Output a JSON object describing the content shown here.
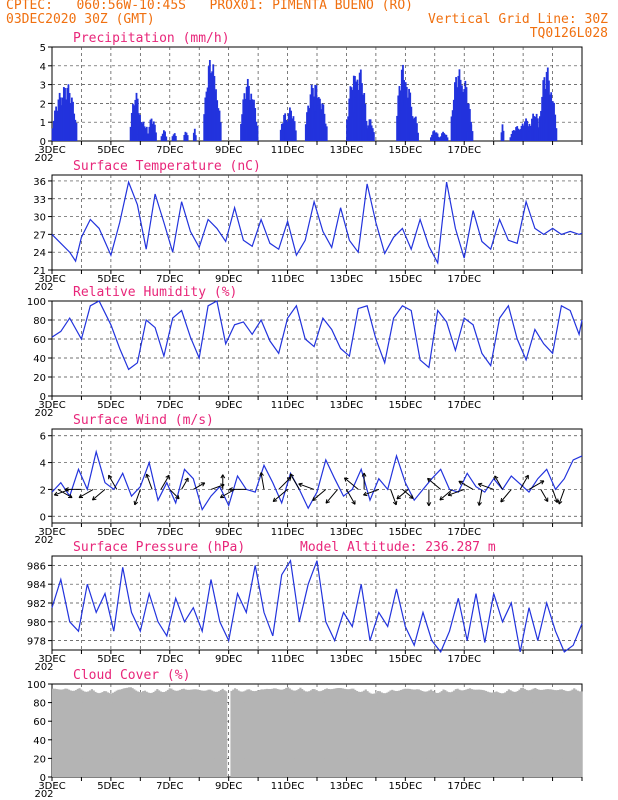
{
  "header": {
    "line1_left": "CPTEC:   060:56W-10:45S   PROX01: PIMENTA BUENO (RO)",
    "line2_left": "03DEC2020 30Z (GMT)",
    "line2_right": "Vertical Grid Line: 30Z",
    "line3_right": "TQ0126L028"
  },
  "x_axis": {
    "ticks": [
      "3DEC",
      "5DEC",
      "7DEC",
      "9DEC",
      "11DEC",
      "13DEC",
      "15DEC",
      "17DEC"
    ],
    "subtick": "202"
  },
  "colors": {
    "title": "#e8267a",
    "header": "#f07010",
    "line": "#2233dd",
    "cloud": "#b4b4b4"
  },
  "chart_data": [
    {
      "type": "bar",
      "title": "Precipitation (mm/h)",
      "ylim": [
        0,
        5
      ],
      "yticks": [
        "0",
        "1",
        "2",
        "3",
        "4",
        "5"
      ],
      "x_unit": "days since 3DEC 30Z",
      "events": [
        [
          0.3,
          0.6,
          2.6
        ],
        [
          0.5,
          0.7,
          3.1
        ],
        [
          2.85,
          0.4,
          2.6
        ],
        [
          3.05,
          0.3,
          1.2
        ],
        [
          3.4,
          0.3,
          1.3
        ],
        [
          3.2,
          0.15,
          0.8
        ],
        [
          3.8,
          0.2,
          0.6
        ],
        [
          4.15,
          0.15,
          0.5
        ],
        [
          4.55,
          0.15,
          0.6
        ],
        [
          4.85,
          0.1,
          0.7
        ],
        [
          5.4,
          0.5,
          4.5
        ],
        [
          5.55,
          0.4,
          2.8
        ],
        [
          6.65,
          0.5,
          3.3
        ],
        [
          6.8,
          0.4,
          2.4
        ],
        [
          7.9,
          0.3,
          1.5
        ],
        [
          8.1,
          0.4,
          1.8
        ],
        [
          8.9,
          0.6,
          3.2
        ],
        [
          9.1,
          0.5,
          2.4
        ],
        [
          10.25,
          0.5,
          3.6
        ],
        [
          10.45,
          0.5,
          3.9
        ],
        [
          10.8,
          0.3,
          1.2
        ],
        [
          11.9,
          0.4,
          4.1
        ],
        [
          12.05,
          0.5,
          3.2
        ],
        [
          12.3,
          0.3,
          1.5
        ],
        [
          13.0,
          0.3,
          0.6
        ],
        [
          13.3,
          0.3,
          0.5
        ],
        [
          13.8,
          0.5,
          3.9
        ],
        [
          14.0,
          0.5,
          3.3
        ],
        [
          14.2,
          0.2,
          1.1
        ],
        [
          15.3,
          0.1,
          0.9
        ],
        [
          15.8,
          0.5,
          0.8
        ],
        [
          16.1,
          0.5,
          1.2
        ],
        [
          16.4,
          0.4,
          1.6
        ],
        [
          16.8,
          0.5,
          4.0
        ],
        [
          16.95,
          0.4,
          2.6
        ]
      ]
    },
    {
      "type": "line",
      "title": "Surface Temperature (nC)",
      "ylim": [
        21,
        37
      ],
      "yticks": [
        "21",
        "24",
        "27",
        "30",
        "33",
        "36"
      ],
      "x_unit": "days since 3DEC 30Z",
      "x": [
        0,
        0.3,
        0.6,
        0.8,
        1,
        1.3,
        1.6,
        2.0,
        2.3,
        2.6,
        2.9,
        3.2,
        3.5,
        3.8,
        4.1,
        4.4,
        4.7,
        5.0,
        5.3,
        5.6,
        5.9,
        6.2,
        6.5,
        6.8,
        7.1,
        7.4,
        7.7,
        8.0,
        8.3,
        8.6,
        8.9,
        9.2,
        9.5,
        9.8,
        10.1,
        10.4,
        10.7,
        11.0,
        11.3,
        11.6,
        11.9,
        12.2,
        12.5,
        12.8,
        13.1,
        13.4,
        13.7,
        14.0,
        14.3,
        14.6,
        14.9,
        15.2,
        15.5,
        15.8,
        16.1,
        16.4,
        16.7,
        17.0,
        17.3,
        17.6,
        17.9,
        18.0
      ],
      "y": [
        27,
        25.5,
        24,
        22.5,
        26.5,
        29.5,
        28,
        23.5,
        29,
        35.8,
        32,
        24.5,
        33.8,
        29,
        24,
        32.5,
        27.5,
        24.8,
        29.5,
        28,
        25.8,
        31.5,
        26,
        25,
        29.5,
        25.5,
        24.5,
        29.2,
        23.5,
        26,
        32.5,
        27.5,
        24.8,
        31.5,
        26,
        24,
        35.5,
        29,
        23.8,
        26.5,
        28,
        24.5,
        29.5,
        25,
        22.2,
        35.8,
        28,
        23,
        31,
        25.8,
        24.5,
        29.5,
        26,
        25.5,
        32.5,
        28,
        27,
        28,
        27,
        27.5,
        27,
        27.2
      ]
    },
    {
      "type": "line",
      "title": "Relative Humidity (%)",
      "ylim": [
        0,
        100
      ],
      "yticks": [
        "0",
        "20",
        "40",
        "60",
        "80",
        "100"
      ],
      "x_unit": "days since 3DEC 30Z",
      "x": [
        0,
        0.3,
        0.6,
        1.0,
        1.3,
        1.6,
        2.0,
        2.3,
        2.6,
        2.9,
        3.2,
        3.5,
        3.8,
        4.1,
        4.4,
        4.7,
        5.0,
        5.3,
        5.6,
        5.9,
        6.2,
        6.5,
        6.8,
        7.1,
        7.4,
        7.7,
        8.0,
        8.3,
        8.6,
        8.9,
        9.2,
        9.5,
        9.8,
        10.1,
        10.4,
        10.7,
        11.0,
        11.3,
        11.6,
        11.9,
        12.2,
        12.5,
        12.8,
        13.1,
        13.4,
        13.7,
        14.0,
        14.3,
        14.6,
        14.9,
        15.2,
        15.5,
        15.8,
        16.1,
        16.4,
        16.7,
        17.0,
        17.3,
        17.6,
        17.9,
        18.0
      ],
      "y": [
        62,
        68,
        82,
        60,
        95,
        100,
        75,
        50,
        28,
        35,
        80,
        72,
        42,
        82,
        90,
        62,
        40,
        95,
        100,
        55,
        75,
        78,
        65,
        80,
        58,
        45,
        82,
        95,
        60,
        52,
        82,
        70,
        50,
        42,
        92,
        95,
        60,
        35,
        82,
        95,
        90,
        38,
        30,
        90,
        78,
        48,
        82,
        75,
        45,
        32,
        82,
        95,
        60,
        38,
        70,
        55,
        45,
        95,
        90,
        65,
        80
      ]
    },
    {
      "type": "line",
      "title": "Surface Wind (m/s)",
      "ylim": [
        -0.5,
        6.5
      ],
      "yticks": [
        "0",
        "2",
        "4",
        "6"
      ],
      "x_unit": "days since 3DEC 30Z",
      "x": [
        0,
        0.3,
        0.6,
        0.9,
        1.2,
        1.5,
        1.8,
        2.1,
        2.4,
        2.7,
        3.0,
        3.3,
        3.6,
        3.9,
        4.2,
        4.5,
        4.8,
        5.1,
        5.4,
        5.7,
        6.0,
        6.3,
        6.6,
        6.9,
        7.2,
        7.5,
        7.8,
        8.1,
        8.4,
        8.7,
        9.0,
        9.3,
        9.6,
        9.9,
        10.2,
        10.5,
        10.8,
        11.1,
        11.4,
        11.7,
        12.0,
        12.3,
        12.6,
        12.9,
        13.2,
        13.5,
        13.8,
        14.1,
        14.4,
        14.7,
        15.0,
        15.3,
        15.6,
        15.9,
        16.2,
        16.5,
        16.8,
        17.1,
        17.4,
        17.7,
        18.0
      ],
      "y": [
        1.8,
        2.5,
        1.5,
        3.5,
        2.0,
        4.8,
        2.5,
        2.0,
        3.2,
        1.5,
        2.2,
        4.0,
        1.2,
        2.5,
        1.0,
        3.5,
        2.8,
        0.5,
        1.5,
        2.2,
        0.8,
        3.0,
        2.0,
        1.8,
        3.8,
        2.5,
        1.0,
        3.2,
        2.0,
        0.6,
        1.8,
        4.2,
        2.8,
        1.5,
        2.0,
        3.5,
        1.2,
        2.8,
        2.0,
        4.5,
        2.5,
        1.2,
        2.0,
        2.8,
        3.5,
        2.0,
        1.8,
        3.2,
        2.2,
        1.8,
        2.8,
        2.0,
        3.0,
        2.4,
        1.8,
        2.8,
        3.5,
        2.0,
        2.8,
        4.2,
        4.5
      ],
      "arrows": [
        [
          0.2,
          -30,
          0.8
        ],
        [
          0.6,
          200,
          0.8
        ],
        [
          1.0,
          180,
          0.8
        ],
        [
          1.4,
          -150,
          0.8
        ],
        [
          1.8,
          -140,
          0.8
        ],
        [
          2.2,
          120,
          0.8
        ],
        [
          3.0,
          -110,
          0.8
        ],
        [
          3.4,
          110,
          0.8
        ],
        [
          3.7,
          60,
          0.8
        ],
        [
          4.0,
          -45,
          0.4
        ],
        [
          4.4,
          60,
          0.4
        ],
        [
          4.8,
          30,
          0.4
        ],
        [
          5.4,
          20,
          0.5
        ],
        [
          5.8,
          90,
          0.6
        ],
        [
          6.2,
          -150,
          0.8
        ],
        [
          6.6,
          180,
          0.9
        ],
        [
          7.2,
          100,
          0.9
        ],
        [
          7.7,
          45,
          0.9
        ],
        [
          8.0,
          -140,
          1.1
        ],
        [
          8.4,
          120,
          1.0
        ],
        [
          8.9,
          160,
          0.8
        ],
        [
          9.3,
          -140,
          0.9
        ],
        [
          9.7,
          -130,
          1.0
        ],
        [
          10.0,
          -60,
          0.9
        ],
        [
          10.4,
          140,
          1.0
        ],
        [
          10.6,
          90,
          0.8
        ],
        [
          11.1,
          -160,
          0.8
        ],
        [
          11.5,
          -70,
          0.8
        ],
        [
          11.9,
          -40,
          0.5
        ],
        [
          12.1,
          -140,
          0.6
        ],
        [
          12.8,
          -90,
          0.8
        ],
        [
          13.2,
          140,
          0.9
        ],
        [
          13.6,
          -140,
          0.8
        ],
        [
          14.0,
          200,
          0.9
        ],
        [
          14.3,
          150,
          0.8
        ],
        [
          14.6,
          -100,
          0.8
        ],
        [
          15.0,
          160,
          0.8
        ],
        [
          15.3,
          120,
          0.7
        ],
        [
          15.6,
          -130,
          0.8
        ],
        [
          15.9,
          60,
          0.8
        ],
        [
          16.2,
          30,
          0.9
        ],
        [
          16.6,
          -60,
          0.5
        ],
        [
          17.0,
          -70,
          0.5
        ],
        [
          17.4,
          -110,
          0.7
        ]
      ]
    },
    {
      "type": "line",
      "title": "Surface Pressure (hPa)",
      "subtitle": "Model Altitude: 236.287 m",
      "ylim": [
        977,
        987
      ],
      "yticks": [
        "978",
        "980",
        "982",
        "984",
        "986"
      ],
      "x_unit": "days since 3DEC 30Z",
      "x": [
        0,
        0.3,
        0.6,
        0.9,
        1.2,
        1.5,
        1.8,
        2.1,
        2.4,
        2.7,
        3.0,
        3.3,
        3.6,
        3.9,
        4.2,
        4.5,
        4.8,
        5.1,
        5.4,
        5.7,
        6.0,
        6.3,
        6.6,
        6.9,
        7.2,
        7.5,
        7.8,
        8.1,
        8.4,
        8.7,
        9.0,
        9.3,
        9.6,
        9.9,
        10.2,
        10.5,
        10.8,
        11.1,
        11.4,
        11.7,
        12.0,
        12.3,
        12.6,
        12.9,
        13.2,
        13.5,
        13.8,
        14.1,
        14.4,
        14.7,
        15.0,
        15.3,
        15.6,
        15.9,
        16.2,
        16.5,
        16.8,
        17.1,
        17.4,
        17.7,
        18.0
      ],
      "y": [
        981.5,
        984.5,
        980,
        979,
        984,
        981,
        983,
        979,
        985.8,
        981,
        979,
        983,
        980,
        978.5,
        982.5,
        980,
        981.5,
        979,
        984.5,
        980,
        978,
        983,
        981,
        986,
        981,
        978.5,
        985,
        986.5,
        980,
        984,
        986.5,
        980,
        978,
        981,
        979.5,
        984,
        978,
        981,
        979.5,
        983.5,
        979.5,
        977.5,
        981,
        978,
        976.8,
        979,
        982.5,
        978,
        983,
        977.8,
        983,
        980,
        982,
        976.8,
        981.5,
        978,
        982,
        979,
        976.8,
        977.5,
        979.8
      ]
    },
    {
      "type": "area",
      "title": "Cloud Cover (%)",
      "ylim": [
        0,
        100
      ],
      "yticks": [
        "0",
        "20",
        "40",
        "60",
        "80",
        "100"
      ],
      "x_unit": "days since 3DEC 30Z",
      "x": [
        0,
        1,
        2,
        2.6,
        3,
        4,
        5,
        5.8,
        6.1,
        7,
        8,
        9,
        10,
        11,
        12,
        13,
        14,
        15,
        16,
        17,
        18
      ],
      "y": [
        95,
        96,
        92,
        97,
        93,
        96,
        94,
        95,
        96,
        94,
        97,
        95,
        96,
        93,
        95,
        94,
        96,
        92,
        97,
        94,
        96
      ],
      "gap_days": [
        5.95
      ]
    }
  ]
}
